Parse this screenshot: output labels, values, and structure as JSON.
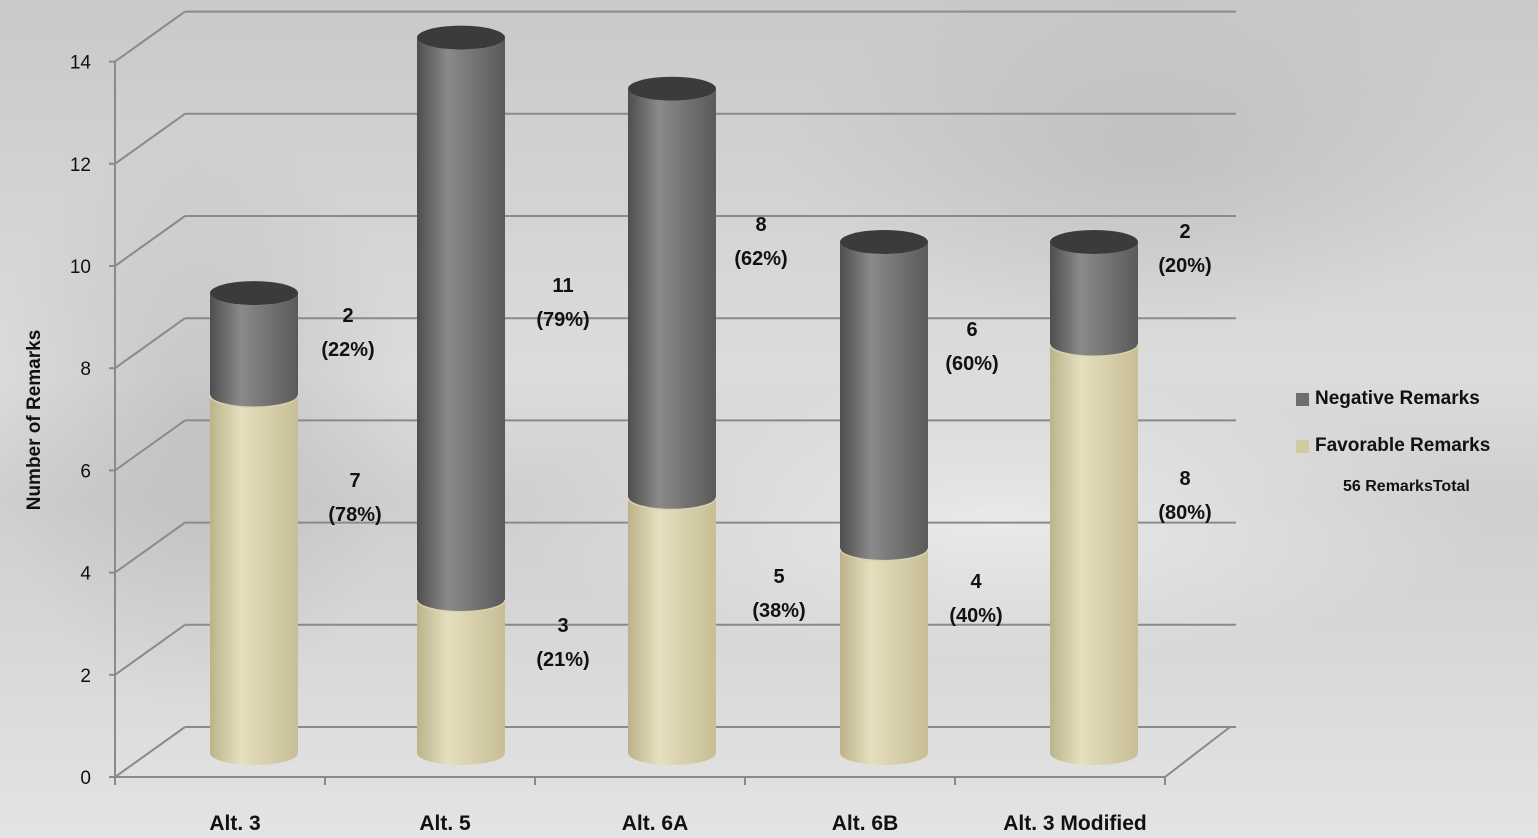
{
  "chart_data": {
    "type": "bar",
    "stacked": true,
    "three_d": true,
    "categories": [
      "Alt. 3",
      "Alt. 5",
      "Alt. 6A",
      "Alt. 6B",
      "Alt. 3 Modified"
    ],
    "series": [
      {
        "name": "Favorable Remarks",
        "color": "#d3cba0",
        "values": [
          7,
          3,
          5,
          4,
          8
        ],
        "labels": [
          [
            "7",
            "(78%)"
          ],
          [
            "3",
            "(21%)"
          ],
          [
            "5",
            "(38%)"
          ],
          [
            "4",
            "(40%)"
          ],
          [
            "8",
            "(80%)"
          ]
        ]
      },
      {
        "name": "Negative Remarks",
        "color": "#6e6e6e",
        "values": [
          2,
          11,
          8,
          6,
          2
        ],
        "labels": [
          [
            "2",
            "(22%)"
          ],
          [
            "11",
            "(79%)"
          ],
          [
            "8",
            "(62%)"
          ],
          [
            "6",
            "(60%)"
          ],
          [
            "2",
            "(20%)"
          ]
        ]
      }
    ],
    "ylabel": "Number of Remarks",
    "xlabel": "",
    "ylim": [
      0,
      14
    ],
    "yticks": [
      "0",
      "2",
      "4",
      "6",
      "8",
      "10",
      "12",
      "14"
    ],
    "grid": true,
    "legend_position": "right",
    "legend_note": "56 RemarksTotal"
  }
}
